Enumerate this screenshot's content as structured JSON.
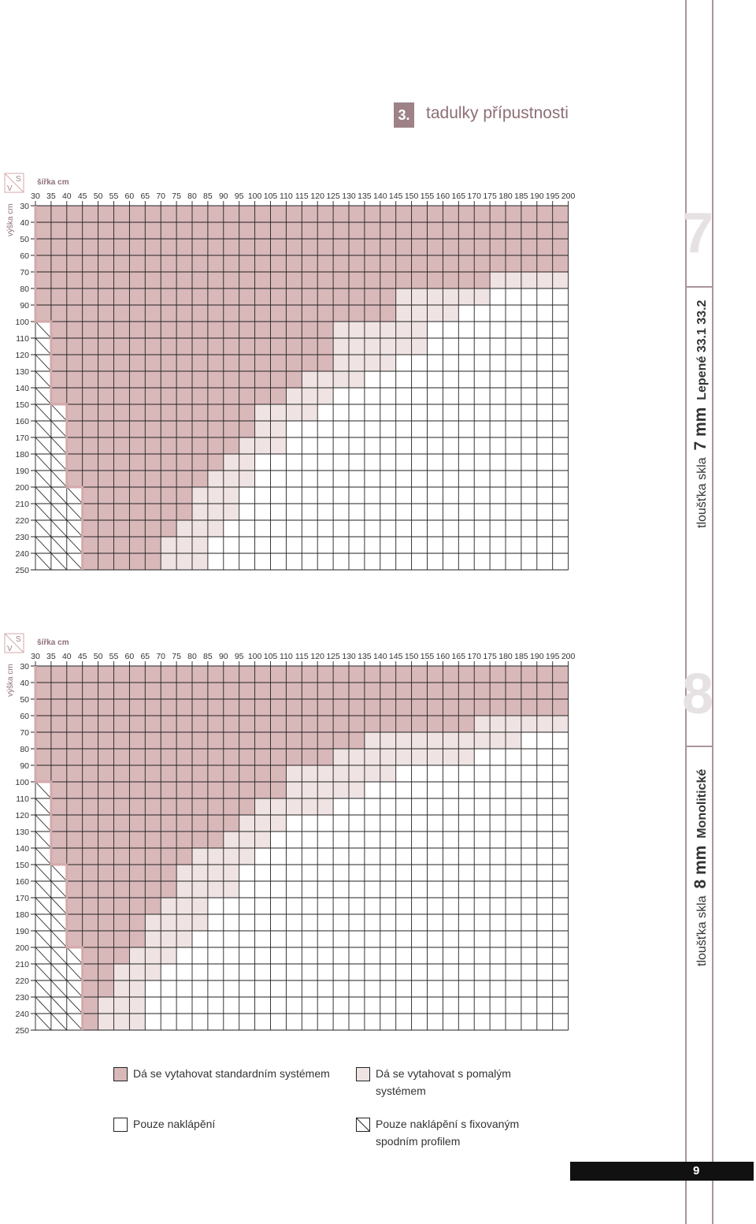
{
  "header": {
    "section_number": "3.",
    "title": "tadulky přípustnosti"
  },
  "tables": [
    {
      "id": "7",
      "big_number": "7",
      "side_label": {
        "prefix": "tloušťka skla",
        "thickness": "7 mm",
        "type": "Lepené 33.1 33.2"
      },
      "corner_v": "V",
      "corner_s": "S",
      "width_label": "šířka cm",
      "height_label": "výška cm",
      "widths": [
        "30",
        "35",
        "40",
        "45",
        "50",
        "55",
        "60",
        "65",
        "70",
        "75",
        "80",
        "85",
        "90",
        "95",
        "100",
        "105",
        "110",
        "115",
        "120",
        "125",
        "130",
        "135",
        "140",
        "145",
        "150",
        "155",
        "160",
        "165",
        "170",
        "175",
        "180",
        "185",
        "190",
        "195",
        "200"
      ],
      "heights": [
        "30",
        "40",
        "50",
        "60",
        "70",
        "80",
        "90",
        "100",
        "110",
        "120",
        "130",
        "140",
        "150",
        "160",
        "170",
        "180",
        "190",
        "200",
        "210",
        "220",
        "230",
        "240",
        "250"
      ],
      "dark_until": [
        34,
        34,
        34,
        34,
        29,
        23,
        23,
        19,
        19,
        19,
        17,
        16,
        14,
        14,
        13,
        12,
        11,
        10,
        10,
        9,
        8,
        8,
        8
      ],
      "light_until": [
        34,
        34,
        34,
        34,
        34,
        29,
        27,
        25,
        25,
        23,
        21,
        19,
        18,
        16,
        16,
        14,
        14,
        13,
        13,
        12,
        11,
        11,
        11
      ],
      "hatch_from": [
        34,
        34,
        34,
        34,
        34,
        34,
        34,
        34,
        34,
        34,
        34,
        34,
        34,
        34,
        34,
        34,
        34,
        34,
        34,
        34,
        34,
        34,
        34
      ],
      "hatch_before": [
        0,
        0,
        0,
        0,
        0,
        0,
        0,
        1,
        1,
        1,
        1,
        1,
        2,
        2,
        2,
        2,
        2,
        3,
        3,
        3,
        3,
        3,
        3
      ]
    },
    {
      "id": "8",
      "big_number": "8",
      "side_label": {
        "prefix": "tloušťka skla",
        "thickness": "8 mm",
        "type": "Monolitické"
      },
      "corner_v": "V",
      "corner_s": "S",
      "width_label": "šířka cm",
      "height_label": "výška cm",
      "widths": [
        "30",
        "35",
        "40",
        "45",
        "50",
        "55",
        "60",
        "65",
        "70",
        "75",
        "80",
        "85",
        "90",
        "95",
        "100",
        "105",
        "110",
        "115",
        "120",
        "125",
        "130",
        "135",
        "140",
        "145",
        "150",
        "155",
        "160",
        "165",
        "170",
        "175",
        "180",
        "185",
        "190",
        "195",
        "200"
      ],
      "heights": [
        "30",
        "40",
        "50",
        "60",
        "70",
        "80",
        "90",
        "100",
        "110",
        "120",
        "130",
        "140",
        "150",
        "160",
        "170",
        "180",
        "190",
        "200",
        "210",
        "220",
        "230",
        "240",
        "250"
      ],
      "dark_until": [
        34,
        34,
        34,
        28,
        21,
        19,
        16,
        16,
        14,
        13,
        12,
        10,
        9,
        9,
        8,
        7,
        7,
        6,
        5,
        5,
        4,
        4,
        4
      ],
      "light_until": [
        34,
        34,
        34,
        34,
        31,
        28,
        23,
        21,
        19,
        16,
        15,
        14,
        13,
        13,
        11,
        11,
        10,
        9,
        8,
        7,
        7,
        7,
        7
      ],
      "hatch_from": [
        34,
        34,
        34,
        34,
        34,
        34,
        34,
        34,
        34,
        34,
        34,
        34,
        34,
        34,
        34,
        34,
        34,
        34,
        34,
        34,
        34,
        34,
        34
      ],
      "hatch_before": [
        0,
        0,
        0,
        0,
        0,
        0,
        0,
        1,
        1,
        1,
        1,
        1,
        2,
        2,
        2,
        2,
        2,
        3,
        3,
        3,
        3,
        3,
        3
      ]
    }
  ],
  "legend": [
    {
      "key": "standard",
      "text": "Dá se vytahovat standardním systémem",
      "color": "#d9b8b9"
    },
    {
      "key": "slow",
      "text": "Dá se vytahovat s pomalým systémem",
      "color": "#efe3e3"
    },
    {
      "key": "tilt",
      "text": "Pouze naklápění",
      "color": "#ffffff"
    },
    {
      "key": "tilt-fixed",
      "text": "Pouze naklápění s fixovaným spodním profilem",
      "color": "#ffffff"
    }
  ],
  "colors": {
    "dark": "#d9b8b9",
    "light": "#efe3e3",
    "white": "#ffffff",
    "line": "#222222",
    "step": "#d4a9ab",
    "accent": "#9e8288"
  },
  "footer": {
    "page_number": "9"
  }
}
